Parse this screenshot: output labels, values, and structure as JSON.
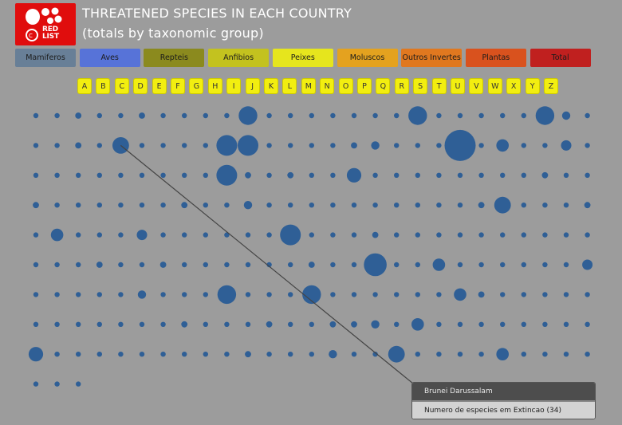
{
  "header": {
    "logo_line1": "RED",
    "logo_line2": "LIST",
    "title": "THREATENED SPECIES IN EACH COUNTRY",
    "subtitle": "(totals by taxonomic group)"
  },
  "filters": [
    {
      "label": "Mamiferos",
      "color": "#687f97",
      "text_color": "#1b1b1b"
    },
    {
      "label": "Aves",
      "color": "#5773d8",
      "text_color": "#1b1b1b"
    },
    {
      "label": "Repteis",
      "color": "#8b8a1e",
      "text_color": "#1b1b1b"
    },
    {
      "label": "Anfibios",
      "color": "#c3c21f",
      "text_color": "#1b1b1b"
    },
    {
      "label": "Peixes",
      "color": "#e6e51d",
      "text_color": "#1b1b1b"
    },
    {
      "label": "Moluscos",
      "color": "#e4a21f",
      "text_color": "#1b1b1b"
    },
    {
      "label": "Outros Invertes",
      "color": "#e0781f",
      "text_color": "#1b1b1b"
    },
    {
      "label": "Plantas",
      "color": "#d9521e",
      "text_color": "#1b1b1b"
    },
    {
      "label": "Total",
      "color": "#c0201f",
      "text_color": "#1b1b1b"
    }
  ],
  "letters": [
    "A",
    "B",
    "C",
    "D",
    "E",
    "F",
    "G",
    "H",
    "I",
    "J",
    "K",
    "L",
    "M",
    "N",
    "O",
    "P",
    "Q",
    "R",
    "S",
    "T",
    "U",
    "V",
    "W",
    "X",
    "Y",
    "Z"
  ],
  "tooltip": {
    "country": "Brunei Darussalam",
    "value_text": "Numero de especies em Extincao (34)"
  },
  "chart_data": {
    "type": "scatter",
    "bubble_color": "#2f5f96",
    "selected_row": 1,
    "selected_col": 4,
    "rows": [
      [
        2,
        2,
        3,
        2,
        2,
        3,
        2,
        2,
        2,
        2,
        9,
        2,
        2,
        2,
        1,
        2,
        2,
        2,
        9,
        2,
        2,
        2,
        2,
        2,
        9,
        4,
        2
      ],
      [
        1,
        2,
        3,
        2,
        8,
        1,
        2,
        2,
        2,
        10,
        10,
        1,
        2,
        2,
        2,
        3,
        4,
        2,
        2,
        2,
        15,
        2,
        6,
        2,
        1,
        5,
        1
      ],
      [
        2,
        1,
        2,
        2,
        2,
        1,
        1,
        2,
        2,
        10,
        3,
        1,
        3,
        2,
        2,
        7,
        2,
        1,
        1,
        2,
        2,
        2,
        2,
        2,
        3,
        2,
        2
      ],
      [
        3,
        1,
        2,
        2,
        2,
        2,
        2,
        3,
        2,
        2,
        4,
        2,
        2,
        2,
        1,
        2,
        2,
        2,
        2,
        2,
        2,
        3,
        8,
        2,
        2,
        2,
        3
      ],
      [
        1,
        6,
        2,
        2,
        2,
        5,
        2,
        2,
        1,
        2,
        1,
        2,
        10,
        2,
        2,
        2,
        3,
        2,
        2,
        2,
        2,
        2,
        2,
        2,
        2,
        2,
        2
      ],
      [
        2,
        2,
        2,
        3,
        1,
        2,
        3,
        2,
        2,
        2,
        2,
        2,
        1,
        3,
        2,
        2,
        11,
        2,
        2,
        6,
        2,
        2,
        2,
        2,
        2,
        2,
        5
      ],
      [
        2,
        1,
        2,
        2,
        2,
        4,
        2,
        2,
        2,
        9,
        2,
        2,
        2,
        9,
        1,
        2,
        2,
        2,
        2,
        2,
        6,
        3,
        2,
        2,
        2,
        2,
        2
      ],
      [
        2,
        1,
        2,
        2,
        2,
        2,
        2,
        3,
        2,
        1,
        2,
        3,
        2,
        2,
        3,
        3,
        4,
        2,
        6,
        2,
        2,
        2,
        2,
        2,
        2,
        2,
        2
      ],
      [
        7,
        2,
        2,
        2,
        2,
        2,
        2,
        2,
        2,
        2,
        3,
        2,
        2,
        2,
        4,
        2,
        2,
        8,
        2,
        2,
        2,
        2,
        6,
        2,
        2,
        2,
        2
      ],
      [
        2,
        2,
        2
      ]
    ]
  }
}
